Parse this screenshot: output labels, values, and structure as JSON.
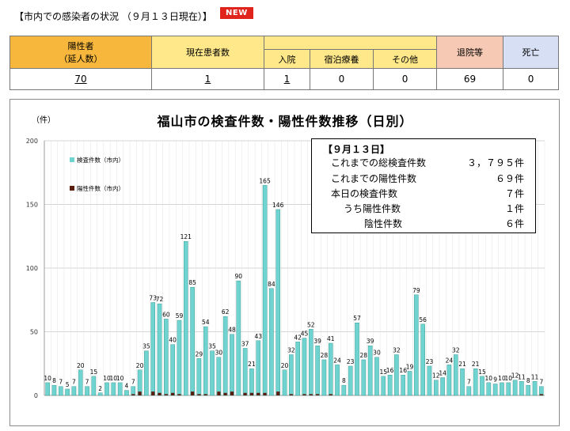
{
  "header": {
    "title": "【市内での感染者の状況 （９月１３日現在）】",
    "badge": "NEW"
  },
  "table": {
    "positive_label_1": "陽性者",
    "positive_label_2": "（延人数）",
    "current_label": "現在患者数",
    "hospital_label": "入院",
    "hotel_label": "宿泊療養",
    "other_label": "その他",
    "discharged_label": "退院等",
    "death_label": "死亡",
    "positive": "70",
    "current": "1",
    "hospital": "1",
    "hotel": "0",
    "other": "0",
    "discharged": "69",
    "death": "0"
  },
  "colors": {
    "orange": "#f6b73c",
    "yellow": "#ffe88a",
    "pink": "#f6c9b4",
    "blue": "#d6dff3",
    "test_bar": "#6fd3cf",
    "positive_bar": "#5a1d0e",
    "new_badge": "#e0241b"
  },
  "info": {
    "title": "【９月１３日】",
    "rows": [
      {
        "label": "これまでの総検査件数",
        "value": "３，７９５件"
      },
      {
        "label": "これまでの陽性件数",
        "value": "６９件"
      },
      {
        "label": "本日の検査件数",
        "value": "７件"
      },
      {
        "label": "うち陽性件数",
        "value": "１件"
      },
      {
        "label": "陰性件数",
        "value": "６件"
      }
    ]
  },
  "chart_data": {
    "type": "bar",
    "title": "福山市の検査件数・陽性件数推移（日別）",
    "ylabel": "（件）",
    "ylim": [
      0,
      200
    ],
    "yticks": [
      0,
      50,
      100,
      150,
      200
    ],
    "grid": true,
    "legend_position": "top-left",
    "series": [
      {
        "name": "検査件数（市内）",
        "color": "#6fd3cf",
        "values": [
          10,
          8,
          7,
          5,
          7,
          20,
          7,
          15,
          2,
          10,
          10,
          10,
          4,
          7,
          20,
          35,
          73,
          72,
          60,
          40,
          59,
          121,
          85,
          29,
          54,
          35,
          30,
          62,
          48,
          90,
          37,
          21,
          43,
          165,
          84,
          146,
          20,
          32,
          42,
          45,
          52,
          39,
          28,
          41,
          24,
          8,
          23,
          57,
          28,
          39,
          30,
          15,
          16,
          32,
          16,
          19,
          79,
          56,
          23,
          12,
          14,
          24,
          32,
          21,
          7,
          21,
          15,
          10,
          9,
          10,
          10,
          12,
          11,
          8,
          11,
          7
        ],
        "labels": [
          "10",
          "8",
          "7",
          "5",
          "7",
          "20",
          "7",
          "15",
          "2",
          "10",
          "10",
          "10",
          "4",
          "7",
          "20",
          "35",
          "73",
          "72",
          "60",
          "40",
          "59",
          "121",
          "85",
          "29",
          "54",
          "35",
          "30",
          "62",
          "48",
          "90",
          "37",
          "21",
          "43",
          "165",
          "84",
          "146",
          "20",
          "32",
          "42",
          "45",
          "52",
          "39",
          "28",
          "41",
          "24",
          "8",
          "23",
          "57",
          "28",
          "39",
          "30",
          "15",
          "16",
          "32",
          "16",
          "19",
          "79",
          "56",
          "23",
          "12",
          "14",
          "24",
          "32",
          "21",
          "7",
          "21",
          "15",
          "10",
          "9",
          "10",
          "10",
          "12",
          "11",
          "8",
          "11",
          "7"
        ]
      },
      {
        "name": "陽性件数（市内）",
        "color": "#5a1d0e",
        "values": [
          0,
          0,
          0,
          0,
          0,
          0,
          0,
          0,
          0,
          0,
          0,
          0,
          0,
          1,
          3,
          0,
          3,
          2,
          1,
          2,
          1,
          0,
          3,
          1,
          1,
          0,
          3,
          2,
          3,
          0,
          2,
          2,
          2,
          2,
          0,
          3,
          0,
          1,
          0,
          1,
          1,
          1,
          0,
          1,
          0,
          0,
          0,
          0,
          0,
          0,
          0,
          0,
          0,
          0,
          0,
          0,
          0,
          0,
          0,
          0,
          0,
          0,
          0,
          0,
          0,
          0,
          0,
          0,
          0,
          0,
          0,
          0,
          0,
          0,
          0,
          1
        ]
      }
    ]
  }
}
